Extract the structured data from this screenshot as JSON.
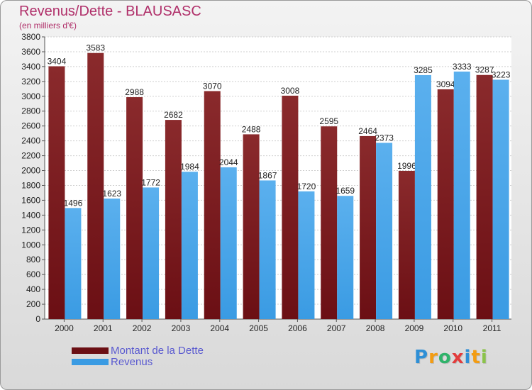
{
  "header": {
    "title": "Revenus/Dette - BLAUSASC",
    "subtitle": "(en milliers d'€)"
  },
  "colors": {
    "dette": "#6b0f14",
    "revenus": "#3a9be3",
    "title": "#b0306a",
    "legend_text": "#5a5ad0"
  },
  "chart_data": {
    "type": "bar",
    "categories": [
      "2000",
      "2001",
      "2002",
      "2003",
      "2004",
      "2005",
      "2006",
      "2007",
      "2008",
      "2009",
      "2010",
      "2011"
    ],
    "series": [
      {
        "name": "Montant de la Dette",
        "values": [
          3404,
          3583,
          2988,
          2682,
          3070,
          2488,
          3008,
          2595,
          2464,
          1996,
          3094,
          3287
        ]
      },
      {
        "name": "Revenus",
        "values": [
          1496,
          1623,
          1772,
          1984,
          2044,
          1867,
          1720,
          1659,
          2373,
          3285,
          3333,
          3223
        ]
      }
    ],
    "ylim": [
      0,
      3800
    ],
    "yticks": [
      0,
      200,
      400,
      600,
      800,
      1000,
      1200,
      1400,
      1600,
      1800,
      2000,
      2200,
      2400,
      2600,
      2800,
      3000,
      3200,
      3400,
      3600,
      3800
    ],
    "grid": true,
    "legend": "bottom-left"
  },
  "logo": {
    "letters": [
      "P",
      "r",
      "o",
      "x",
      "i",
      "t",
      "i"
    ],
    "colors": [
      "#2e8fd6",
      "#f39c12",
      "#2fb36a",
      "#e23c3c",
      "#2e8fd6",
      "#f39c12",
      "#8bc34a"
    ]
  }
}
